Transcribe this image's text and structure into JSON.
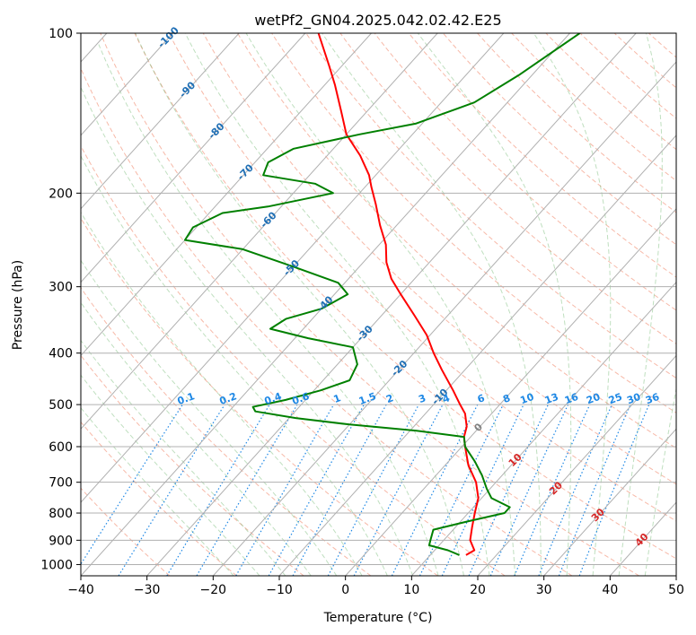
{
  "chart_data": {
    "type": "skew-t",
    "title": "wetPf2_GN04.2025.042.02.42.E25",
    "xlabel": "Temperature (°C)",
    "ylabel": "Pressure (hPa)",
    "xlim": [
      -40,
      50
    ],
    "ylim": [
      1050,
      100
    ],
    "y_scale": "log",
    "grid": true,
    "x_ticks": [
      -40,
      -30,
      -20,
      -10,
      0,
      10,
      20,
      30,
      40,
      50
    ],
    "x_tick_labels": [
      "−40",
      "−30",
      "−20",
      "−10",
      "0",
      "10",
      "20",
      "30",
      "40",
      "50"
    ],
    "y_ticks": [
      1000,
      900,
      800,
      700,
      600,
      500,
      400,
      300,
      200,
      100
    ],
    "y_tick_labels": [
      "1000",
      "900",
      "800",
      "700",
      "600",
      "500",
      "400",
      "300",
      "200",
      "100"
    ],
    "isotherm_labels": [
      "-100",
      "-90",
      "-80",
      "-70",
      "-60",
      "-50",
      "-40",
      "-30",
      "-20",
      "-10",
      "0",
      "10",
      "20",
      "30",
      "40"
    ],
    "isotherm_label_values": [
      -100,
      -90,
      -80,
      -70,
      -60,
      -50,
      -40,
      -30,
      -20,
      -10,
      0,
      10,
      20,
      30,
      40
    ],
    "mixing_ratio_labels": [
      "0.1",
      "0.2",
      "0.4",
      "0.6",
      "1",
      "1.5",
      "2",
      "3",
      "4",
      "6",
      "8",
      "10",
      "13",
      "16",
      "20",
      "25",
      "30",
      "36"
    ],
    "mixing_ratio_values": [
      0.1,
      0.2,
      0.4,
      0.6,
      1,
      1.5,
      2,
      3,
      4,
      6,
      8,
      10,
      13,
      16,
      20,
      25,
      30,
      36
    ],
    "series": [
      {
        "color": "#ff0000",
        "points": [
          {
            "p": 960,
            "t": 15.4
          },
          {
            "p": 940,
            "t": 16.0
          },
          {
            "p": 900,
            "t": 14.0
          },
          {
            "p": 850,
            "t": 12.5
          },
          {
            "p": 800,
            "t": 11.0
          },
          {
            "p": 750,
            "t": 9.5
          },
          {
            "p": 700,
            "t": 7.0
          },
          {
            "p": 650,
            "t": 3.5
          },
          {
            "p": 600,
            "t": 0.5
          },
          {
            "p": 575,
            "t": -1.0
          },
          {
            "p": 550,
            "t": -2.0
          },
          {
            "p": 520,
            "t": -4.0
          },
          {
            "p": 500,
            "t": -6.0
          },
          {
            "p": 470,
            "t": -9.0
          },
          {
            "p": 430,
            "t": -13.5
          },
          {
            "p": 400,
            "t": -17.0
          },
          {
            "p": 370,
            "t": -20.5
          },
          {
            "p": 340,
            "t": -25.0
          },
          {
            "p": 310,
            "t": -30.0
          },
          {
            "p": 290,
            "t": -33.5
          },
          {
            "p": 270,
            "t": -36.5
          },
          {
            "p": 250,
            "t": -39.0
          },
          {
            "p": 230,
            "t": -42.5
          },
          {
            "p": 210,
            "t": -46.0
          },
          {
            "p": 195,
            "t": -49.0
          },
          {
            "p": 185,
            "t": -51.0
          },
          {
            "p": 170,
            "t": -55.0
          },
          {
            "p": 155,
            "t": -60.0
          },
          {
            "p": 140,
            "t": -64.0
          },
          {
            "p": 125,
            "t": -68.5
          },
          {
            "p": 115,
            "t": -72.0
          },
          {
            "p": 100,
            "t": -78.0
          }
        ]
      },
      {
        "color": "#008000",
        "points": [
          {
            "p": 960,
            "t": 14.4
          },
          {
            "p": 940,
            "t": 12.0
          },
          {
            "p": 920,
            "t": 8.5
          },
          {
            "p": 900,
            "t": 8.0
          },
          {
            "p": 860,
            "t": 7.0
          },
          {
            "p": 830,
            "t": 11.0
          },
          {
            "p": 800,
            "t": 15.5
          },
          {
            "p": 780,
            "t": 15.5
          },
          {
            "p": 750,
            "t": 11.5
          },
          {
            "p": 720,
            "t": 9.5
          },
          {
            "p": 680,
            "t": 7.0
          },
          {
            "p": 640,
            "t": 4.0
          },
          {
            "p": 600,
            "t": 0.5
          },
          {
            "p": 575,
            "t": -1.0
          },
          {
            "p": 560,
            "t": -9.0
          },
          {
            "p": 545,
            "t": -20.0
          },
          {
            "p": 530,
            "t": -29.0
          },
          {
            "p": 515,
            "t": -36.0
          },
          {
            "p": 505,
            "t": -37.0
          },
          {
            "p": 490,
            "t": -33.0
          },
          {
            "p": 470,
            "t": -29.0
          },
          {
            "p": 450,
            "t": -26.0
          },
          {
            "p": 420,
            "t": -27.0
          },
          {
            "p": 390,
            "t": -30.0
          },
          {
            "p": 375,
            "t": -38.0
          },
          {
            "p": 360,
            "t": -45.0
          },
          {
            "p": 345,
            "t": -44.0
          },
          {
            "p": 330,
            "t": -40.0
          },
          {
            "p": 310,
            "t": -38.0
          },
          {
            "p": 295,
            "t": -41.0
          },
          {
            "p": 275,
            "t": -50.0
          },
          {
            "p": 255,
            "t": -60.0
          },
          {
            "p": 245,
            "t": -70.0
          },
          {
            "p": 232,
            "t": -70.5
          },
          {
            "p": 218,
            "t": -68.0
          },
          {
            "p": 212,
            "t": -62.0
          },
          {
            "p": 200,
            "t": -54.0
          },
          {
            "p": 192,
            "t": -58.0
          },
          {
            "p": 185,
            "t": -67.0
          },
          {
            "p": 175,
            "t": -68.0
          },
          {
            "p": 165,
            "t": -66.0
          },
          {
            "p": 155,
            "t": -58.0
          },
          {
            "p": 148,
            "t": -51.0
          },
          {
            "p": 135,
            "t": -45.0
          },
          {
            "p": 120,
            "t": -42.0
          },
          {
            "p": 100,
            "t": -38.5
          }
        ]
      }
    ]
  },
  "colors": {
    "temperature": "#ff0000",
    "dewpoint": "#008000",
    "dry_adiabat": "#f08060",
    "moist_adiabat": "#60b060",
    "mixing_ratio": "#1e88e5",
    "isotherm_label": "#1f6fb5",
    "isotherm_label_warm": "#d62728",
    "zero_label": "#808080",
    "grid": "#b0b0b0"
  }
}
